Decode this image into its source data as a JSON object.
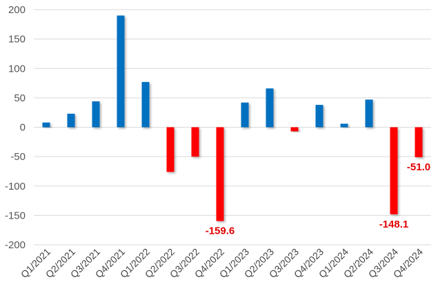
{
  "chart_data": {
    "type": "bar",
    "categories": [
      "Q1/2021",
      "Q2/2021",
      "Q3/2021",
      "Q4/2021",
      "Q1/2022",
      "Q2/2022",
      "Q3/2022",
      "Q4/2022",
      "Q1/2023",
      "Q2/2023",
      "Q3/2023",
      "Q4/2023",
      "Q1/2024",
      "Q2/2024",
      "Q3/2024",
      "Q4/2024"
    ],
    "values": [
      8,
      23,
      44,
      190,
      77,
      -76,
      -50,
      -159.6,
      42,
      66,
      -7,
      38,
      6,
      47,
      -148.1,
      -51.0
    ],
    "data_labels": [
      {
        "index": 7,
        "text": "-159.6"
      },
      {
        "index": 14,
        "text": "-148.1"
      },
      {
        "index": 15,
        "text": "-51.0"
      }
    ],
    "ylim": [
      -200,
      200
    ],
    "yticks": [
      -200,
      -150,
      -100,
      -50,
      0,
      50,
      100,
      150,
      200
    ],
    "ytick_labels": [
      "-200",
      "-150",
      "-100",
      "-50",
      "0",
      "50",
      "100",
      "150",
      "200"
    ],
    "grid": true,
    "colors": {
      "positive": "#0070c0",
      "negative": "#ff0000",
      "grid": "#d9d9d9",
      "label": "#e00000"
    }
  }
}
